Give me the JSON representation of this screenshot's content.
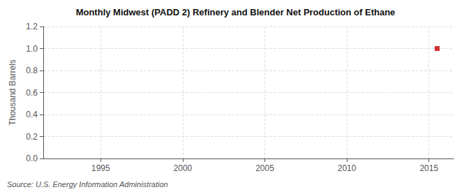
{
  "chart_data": {
    "type": "scatter",
    "title": "Monthly Midwest (PADD 2) Refinery and Blender Net Production of Ethane",
    "ylabel": "Thousand Barrels",
    "annotation": "Source: U.S. Energy Information Administration",
    "x": [
      2015.5
    ],
    "values": [
      1.0
    ],
    "color": "#cc0000",
    "marker": "square",
    "xlim": [
      1991.5,
      2016.5
    ],
    "xticks": [
      1995,
      2000,
      2005,
      2010,
      2015
    ],
    "ylim": [
      0.0,
      1.2
    ],
    "yticks": [
      {
        "value": 0,
        "label": "0.0"
      },
      0.2,
      0.4,
      0.6,
      0.8,
      {
        "value": 1,
        "label": "1.0"
      },
      1.2
    ],
    "grid": true
  }
}
